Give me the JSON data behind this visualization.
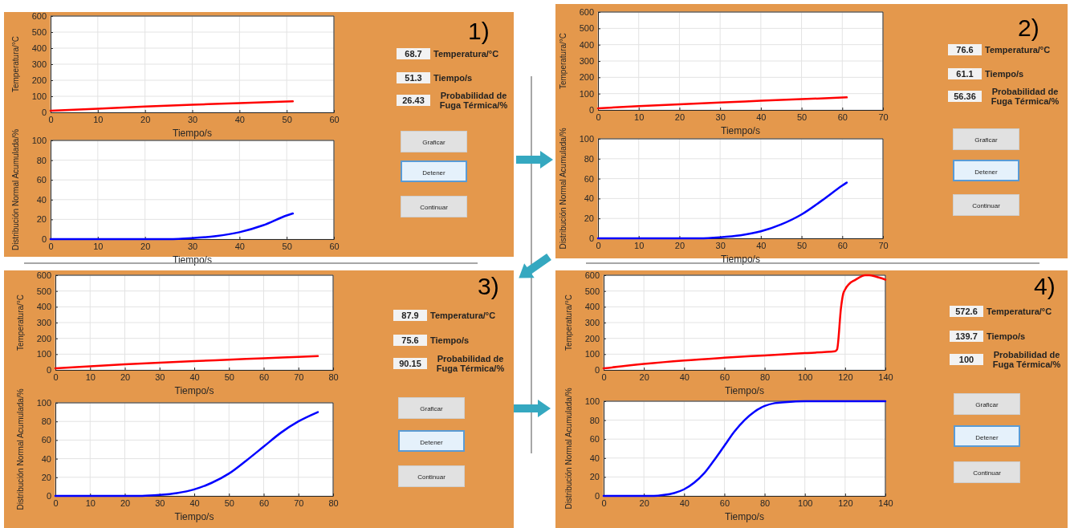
{
  "chart_data": [
    {
      "type": "line",
      "xlabel": "Tiempo/s",
      "ylabel": "Temperatura/°C",
      "x": [
        0,
        10,
        20,
        30,
        40,
        51.3
      ],
      "xlim": [
        0,
        60
      ],
      "xticks": [
        0,
        10,
        20,
        30,
        40,
        50,
        60
      ],
      "ylim": [
        0,
        600
      ],
      "yticks": [
        0,
        100,
        200,
        300,
        400,
        500,
        600
      ],
      "grid": true,
      "series": [
        {
          "color": "#ff0000",
          "values": [
            10,
            23,
            36,
            47,
            58,
            69
          ]
        }
      ]
    },
    {
      "type": "line",
      "xlabel": "Tiempo/s",
      "ylabel": "Distribución Normal Acumulada/%",
      "x": [
        0,
        10,
        20,
        25,
        30,
        35,
        40,
        45,
        50,
        51.3
      ],
      "xlim": [
        0,
        60
      ],
      "xticks": [
        0,
        10,
        20,
        30,
        40,
        50,
        60
      ],
      "ylim": [
        0,
        100
      ],
      "yticks": [
        0,
        20,
        40,
        60,
        80,
        100
      ],
      "grid": true,
      "series": [
        {
          "color": "#0000ff",
          "values": [
            0,
            0,
            0,
            0,
            1,
            3,
            7,
            14,
            24,
            26
          ]
        }
      ]
    },
    {
      "type": "other",
      "annotations": [
        "1)",
        "68.7",
        "Temperatura/°C",
        "51.3",
        "Tiempo/s",
        "26.43",
        "Probabilidad de Fuga Térmica/%",
        "Graficar",
        "Detener",
        "Continuar"
      ]
    },
    {
      "type": "line",
      "xlabel": "Tiempo/s",
      "ylabel": "Temperatura/°C",
      "x": [
        0,
        10,
        20,
        30,
        40,
        50,
        61.1
      ],
      "xlim": [
        0,
        70
      ],
      "xticks": [
        0,
        10,
        20,
        30,
        40,
        50,
        60,
        70
      ],
      "ylim": [
        0,
        600
      ],
      "yticks": [
        0,
        100,
        200,
        300,
        400,
        500,
        600
      ],
      "grid": true,
      "series": [
        {
          "color": "#ff0000",
          "values": [
            10,
            23,
            35,
            46,
            56,
            66,
            77
          ]
        }
      ]
    },
    {
      "type": "line",
      "xlabel": "Tiempo/s",
      "ylabel": "Distribución Normal Acumulada/%",
      "x": [
        0,
        10,
        20,
        25,
        30,
        35,
        40,
        45,
        50,
        55,
        60,
        61.1
      ],
      "xlim": [
        0,
        70
      ],
      "xticks": [
        0,
        10,
        20,
        30,
        40,
        50,
        60,
        70
      ],
      "ylim": [
        0,
        100
      ],
      "yticks": [
        0,
        20,
        40,
        60,
        80,
        100
      ],
      "grid": true,
      "series": [
        {
          "color": "#0000ff",
          "values": [
            0,
            0,
            0,
            0,
            1,
            3,
            7,
            14,
            24,
            38,
            53,
            56
          ]
        }
      ]
    },
    {
      "type": "other",
      "annotations": [
        "2)",
        "76.6",
        "Temperatura/°C",
        "61.1",
        "Tiempo/s",
        "56.36",
        "Probabilidad de Fuga Térmica/%",
        "Graficar",
        "Detener",
        "Continuar"
      ]
    },
    {
      "type": "line",
      "xlabel": "Tiempo/s",
      "ylabel": "Temperatura/°C",
      "x": [
        0,
        10,
        20,
        30,
        40,
        50,
        60,
        70,
        75.6
      ],
      "xlim": [
        0,
        80
      ],
      "xticks": [
        0,
        10,
        20,
        30,
        40,
        50,
        60,
        70,
        80
      ],
      "ylim": [
        0,
        600
      ],
      "yticks": [
        0,
        100,
        200,
        300,
        400,
        500,
        600
      ],
      "grid": true,
      "series": [
        {
          "color": "#ff0000",
          "values": [
            10,
            23,
            35,
            46,
            56,
            65,
            74,
            83,
            88
          ]
        }
      ]
    },
    {
      "type": "line",
      "xlabel": "Tiempo/s",
      "ylabel": "Distribución Normal Acumulada/%",
      "x": [
        0,
        10,
        20,
        25,
        30,
        35,
        40,
        45,
        50,
        55,
        60,
        65,
        70,
        75.6
      ],
      "xlim": [
        0,
        80
      ],
      "xticks": [
        0,
        10,
        20,
        30,
        40,
        50,
        60,
        70,
        80
      ],
      "ylim": [
        0,
        100
      ],
      "yticks": [
        0,
        20,
        40,
        60,
        80,
        100
      ],
      "grid": true,
      "series": [
        {
          "color": "#0000ff",
          "values": [
            0,
            0,
            0,
            0,
            1,
            3,
            7,
            14,
            24,
            38,
            53,
            68,
            80,
            90
          ]
        }
      ]
    },
    {
      "type": "other",
      "annotations": [
        "3)",
        "87.9",
        "Temperatura/°C",
        "75.6",
        "Tiempo/s",
        "90.15",
        "Probabilidad de Fuga Térmica/%",
        "Graficar",
        "Detener",
        "Continuar"
      ]
    },
    {
      "type": "line",
      "xlabel": "Tiempo/s",
      "ylabel": "Temperatura/°C",
      "x": [
        0,
        20,
        40,
        60,
        80,
        100,
        115,
        116,
        118,
        119,
        120,
        122,
        125,
        130,
        132,
        135,
        140
      ],
      "xlim": [
        0,
        140
      ],
      "xticks": [
        0,
        20,
        40,
        60,
        80,
        100,
        120,
        140
      ],
      "ylim": [
        0,
        600
      ],
      "yticks": [
        0,
        100,
        200,
        300,
        400,
        500,
        600
      ],
      "grid": true,
      "series": [
        {
          "color": "#ff0000",
          "values": [
            10,
            38,
            60,
            77,
            92,
            107,
            118,
            130,
            400,
            480,
            510,
            545,
            570,
            600,
            600,
            592,
            572
          ]
        }
      ]
    },
    {
      "type": "line",
      "xlabel": "Tiempo/s",
      "ylabel": "Distribución Normal Acumulada/%",
      "x": [
        0,
        20,
        25,
        30,
        35,
        40,
        45,
        50,
        55,
        60,
        65,
        70,
        75,
        80,
        85,
        90,
        100,
        110,
        140
      ],
      "xlim": [
        0,
        140
      ],
      "xticks": [
        0,
        20,
        40,
        60,
        80,
        100,
        120,
        140
      ],
      "ylim": [
        0,
        100
      ],
      "yticks": [
        0,
        20,
        40,
        60,
        80,
        100
      ],
      "grid": true,
      "series": [
        {
          "color": "#0000ff",
          "values": [
            0,
            0,
            0,
            1,
            3,
            7,
            14,
            24,
            38,
            53,
            68,
            80,
            89,
            95,
            98,
            99,
            100,
            100,
            100
          ]
        }
      ]
    },
    {
      "type": "other",
      "annotations": [
        "4)",
        "572.6",
        "Temperatura/°C",
        "139.7",
        "Tiempo/s",
        "100",
        "Probabilidad de Fuga Térmica/%",
        "Graficar",
        "Detener",
        "Continuar"
      ]
    }
  ]
}
